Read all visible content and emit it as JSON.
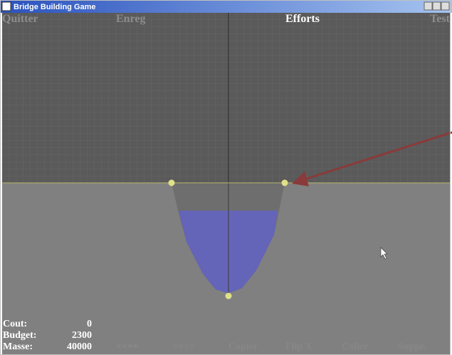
{
  "window": {
    "title": "Bridge Building Game"
  },
  "menu": [
    "Quitter",
    "Enreg",
    "Efforts",
    "Test"
  ],
  "stats": [
    {
      "label": "Cout:",
      "value": 0
    },
    {
      "label": "Budget:",
      "value": 2300
    },
    {
      "label": "Masse:",
      "value": 40000
    }
  ],
  "toolbar": [
    "<<==",
    "==>>",
    "Copier",
    "Flip X",
    "Coller",
    "Suppr."
  ]
}
